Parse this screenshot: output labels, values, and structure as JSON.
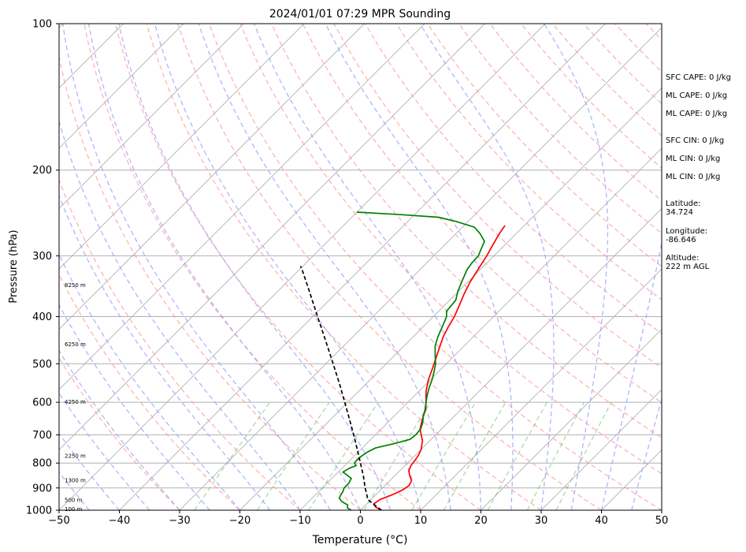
{
  "chart_data": {
    "type": "line",
    "title": "2024/01/01 07:29 MPR Sounding",
    "xlabel": "Temperature (°C)",
    "ylabel": "Pressure (hPa)",
    "xlim": [
      -50,
      50
    ],
    "ylim": [
      1000,
      100
    ],
    "yscale": "log",
    "x_ticks": [
      "−50",
      "−40",
      "−30",
      "−20",
      "−10",
      "0",
      "10",
      "20",
      "30",
      "40",
      "50"
    ],
    "y_ticks": [
      "100",
      "200",
      "300",
      "400",
      "500",
      "600",
      "700",
      "800",
      "900",
      "1000"
    ],
    "grid": true,
    "skew_t": true,
    "height_labels": [
      {
        "label": "100 m",
        "p": 993
      },
      {
        "label": "500 m",
        "p": 950
      },
      {
        "label": "1300 m",
        "p": 866
      },
      {
        "label": "2250 m",
        "p": 772
      },
      {
        "label": "4250 m",
        "p": 598
      },
      {
        "label": "6250 m",
        "p": 455
      },
      {
        "label": "8250 m",
        "p": 344
      }
    ],
    "series": [
      {
        "color": "#ff0000",
        "points": [
          [
            1000,
            3.5
          ],
          [
            985,
            2.0
          ],
          [
            970,
            1.2
          ],
          [
            950,
            1.5
          ],
          [
            930,
            2.7
          ],
          [
            910,
            3.6
          ],
          [
            890,
            4.0
          ],
          [
            870,
            3.6
          ],
          [
            850,
            2.5
          ],
          [
            830,
            1.5
          ],
          [
            810,
            1.0
          ],
          [
            790,
            0.8
          ],
          [
            770,
            0.5
          ],
          [
            750,
            0.0
          ],
          [
            720,
            -1.2
          ],
          [
            700,
            -2.4
          ],
          [
            680,
            -3.6
          ],
          [
            665,
            -4.2
          ],
          [
            650,
            -4.8
          ],
          [
            620,
            -5.9
          ],
          [
            600,
            -7.0
          ],
          [
            570,
            -8.8
          ],
          [
            540,
            -10.3
          ],
          [
            510,
            -11.6
          ],
          [
            480,
            -13.0
          ],
          [
            460,
            -14.0
          ],
          [
            440,
            -15.0
          ],
          [
            420,
            -15.8
          ],
          [
            400,
            -16.5
          ],
          [
            380,
            -17.5
          ],
          [
            360,
            -18.6
          ],
          [
            340,
            -19.6
          ],
          [
            320,
            -20.4
          ],
          [
            300,
            -21.2
          ],
          [
            285,
            -22.0
          ],
          [
            270,
            -22.8
          ],
          [
            260,
            -23.2
          ]
        ]
      },
      {
        "color": "#008000",
        "points": [
          [
            1000,
            -1.5
          ],
          [
            990,
            -2.5
          ],
          [
            975,
            -3.0
          ],
          [
            960,
            -4.5
          ],
          [
            945,
            -5.5
          ],
          [
            930,
            -5.8
          ],
          [
            915,
            -6.0
          ],
          [
            900,
            -6.4
          ],
          [
            880,
            -6.4
          ],
          [
            860,
            -6.8
          ],
          [
            845,
            -8.2
          ],
          [
            835,
            -9.2
          ],
          [
            820,
            -8.8
          ],
          [
            810,
            -8.1
          ],
          [
            800,
            -8.8
          ],
          [
            790,
            -8.9
          ],
          [
            775,
            -8.8
          ],
          [
            760,
            -8.5
          ],
          [
            745,
            -7.8
          ],
          [
            730,
            -5.5
          ],
          [
            715,
            -3.5
          ],
          [
            700,
            -3.3
          ],
          [
            680,
            -3.5
          ],
          [
            660,
            -4.2
          ],
          [
            640,
            -5.2
          ],
          [
            620,
            -6.0
          ],
          [
            600,
            -7.0
          ],
          [
            580,
            -8.0
          ],
          [
            560,
            -8.9
          ],
          [
            540,
            -9.7
          ],
          [
            520,
            -10.7
          ],
          [
            500,
            -11.8
          ],
          [
            480,
            -13.3
          ],
          [
            460,
            -14.8
          ],
          [
            440,
            -15.9
          ],
          [
            420,
            -16.8
          ],
          [
            400,
            -17.8
          ],
          [
            390,
            -18.7
          ],
          [
            370,
            -19.0
          ],
          [
            355,
            -20.1
          ],
          [
            340,
            -21.0
          ],
          [
            320,
            -22.2
          ],
          [
            310,
            -22.5
          ],
          [
            300,
            -22.6
          ],
          [
            290,
            -23.3
          ],
          [
            280,
            -24.0
          ],
          [
            270,
            -26.0
          ],
          [
            262,
            -28.0
          ],
          [
            255,
            -32.0
          ],
          [
            250,
            -35.6
          ],
          [
            247,
            -42.0
          ],
          [
            244,
            -50.0
          ]
        ]
      },
      {
        "color": "#000000",
        "dashed": true,
        "points": [
          [
            1000,
            3.5
          ],
          [
            970,
            1.0
          ],
          [
            950,
            -0.6
          ],
          [
            925,
            -1.7
          ],
          [
            900,
            -2.9
          ],
          [
            850,
            -5.2
          ],
          [
            800,
            -7.8
          ],
          [
            750,
            -10.6
          ],
          [
            700,
            -13.6
          ],
          [
            650,
            -16.9
          ],
          [
            600,
            -20.5
          ],
          [
            550,
            -24.4
          ],
          [
            500,
            -28.8
          ],
          [
            450,
            -33.7
          ],
          [
            400,
            -39.2
          ],
          [
            350,
            -45.4
          ],
          [
            320,
            -49.6
          ],
          [
            315,
            -50.4
          ]
        ]
      }
    ]
  },
  "side_panel": {
    "sfc_cape": "SFC CAPE: 0 J/kg",
    "ml_cape_1": "ML CAPE: 0 J/kg",
    "ml_cape_2": "ML CAPE: 0 J/kg",
    "sfc_cin": "SFC CIN: 0 J/kg",
    "ml_cin_1": "ML CIN: 0 J/kg",
    "ml_cin_2": "ML CIN: 0 J/kg",
    "latitude": "Latitude:\n34.724",
    "longitude": "Longitude:\n-86.646",
    "altitude": "Altitude:\n222 m AGL"
  },
  "colors": {
    "temperature": "#ff0000",
    "dewpoint": "#008000",
    "parcel": "#000000",
    "dry_adiabat": "#ff9999",
    "moist_adiabat": "#9999ff",
    "mixing_ratio": "#66bb66",
    "isotherm": "#b0b0b0"
  }
}
